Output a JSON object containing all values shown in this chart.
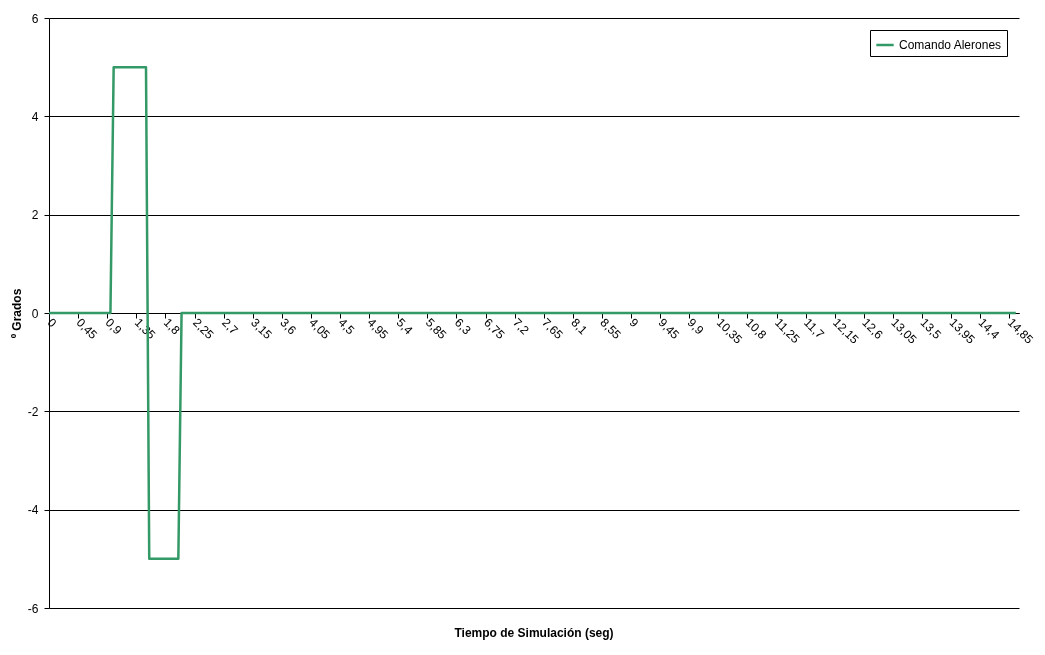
{
  "chart_data": {
    "type": "line",
    "xlabel": "Tiempo de Simulación (seg)",
    "ylabel": "º Grados",
    "series": [
      {
        "name": "Comando Alerones",
        "color": "#339966",
        "x": [
          0,
          0.95,
          1.0,
          1.5,
          1.55,
          2.0,
          2.05,
          14.95
        ],
        "values": [
          0,
          0,
          5,
          5,
          -5,
          -5,
          0,
          0
        ]
      }
    ],
    "xlim": [
      0,
      15
    ],
    "xticks": [
      0,
      {
        "value": 0.45,
        "label": "0,45"
      },
      {
        "value": 0.9,
        "label": "0,9"
      },
      {
        "value": 1.35,
        "label": "1,35"
      },
      {
        "value": 1.8,
        "label": "1,8"
      },
      {
        "value": 2.25,
        "label": "2,25"
      },
      {
        "value": 2.7,
        "label": "2,7"
      },
      {
        "value": 3.15,
        "label": "3,15"
      },
      {
        "value": 3.6,
        "label": "3,6"
      },
      {
        "value": 4.05,
        "label": "4,05"
      },
      {
        "value": 4.5,
        "label": "4,5"
      },
      {
        "value": 4.95,
        "label": "4,95"
      },
      {
        "value": 5.4,
        "label": "5,4"
      },
      {
        "value": 5.85,
        "label": "5,85"
      },
      {
        "value": 6.3,
        "label": "6,3"
      },
      {
        "value": 6.75,
        "label": "6,75"
      },
      {
        "value": 7.2,
        "label": "7,2"
      },
      {
        "value": 7.65,
        "label": "7,65"
      },
      {
        "value": 8.1,
        "label": "8,1"
      },
      {
        "value": 8.55,
        "label": "8,55"
      },
      9,
      {
        "value": 9.45,
        "label": "9,45"
      },
      {
        "value": 9.9,
        "label": "9,9"
      },
      {
        "value": 10.35,
        "label": "10,35"
      },
      {
        "value": 10.8,
        "label": "10,8"
      },
      {
        "value": 11.25,
        "label": "11,25"
      },
      {
        "value": 11.7,
        "label": "11,7"
      },
      {
        "value": 12.15,
        "label": "12,15"
      },
      {
        "value": 12.6,
        "label": "12,6"
      },
      {
        "value": 13.05,
        "label": "13,05"
      },
      {
        "value": 13.5,
        "label": "13,5"
      },
      {
        "value": 13.95,
        "label": "13,95"
      },
      {
        "value": 14.4,
        "label": "14,4"
      },
      {
        "value": 14.85,
        "label": "14,85"
      }
    ],
    "ylim": [
      -6,
      6
    ],
    "yticks": [
      -6,
      -4,
      -2,
      0,
      2,
      4,
      6
    ],
    "grid": "y",
    "legend": "top right",
    "marker": "none",
    "line_style": "solid"
  }
}
